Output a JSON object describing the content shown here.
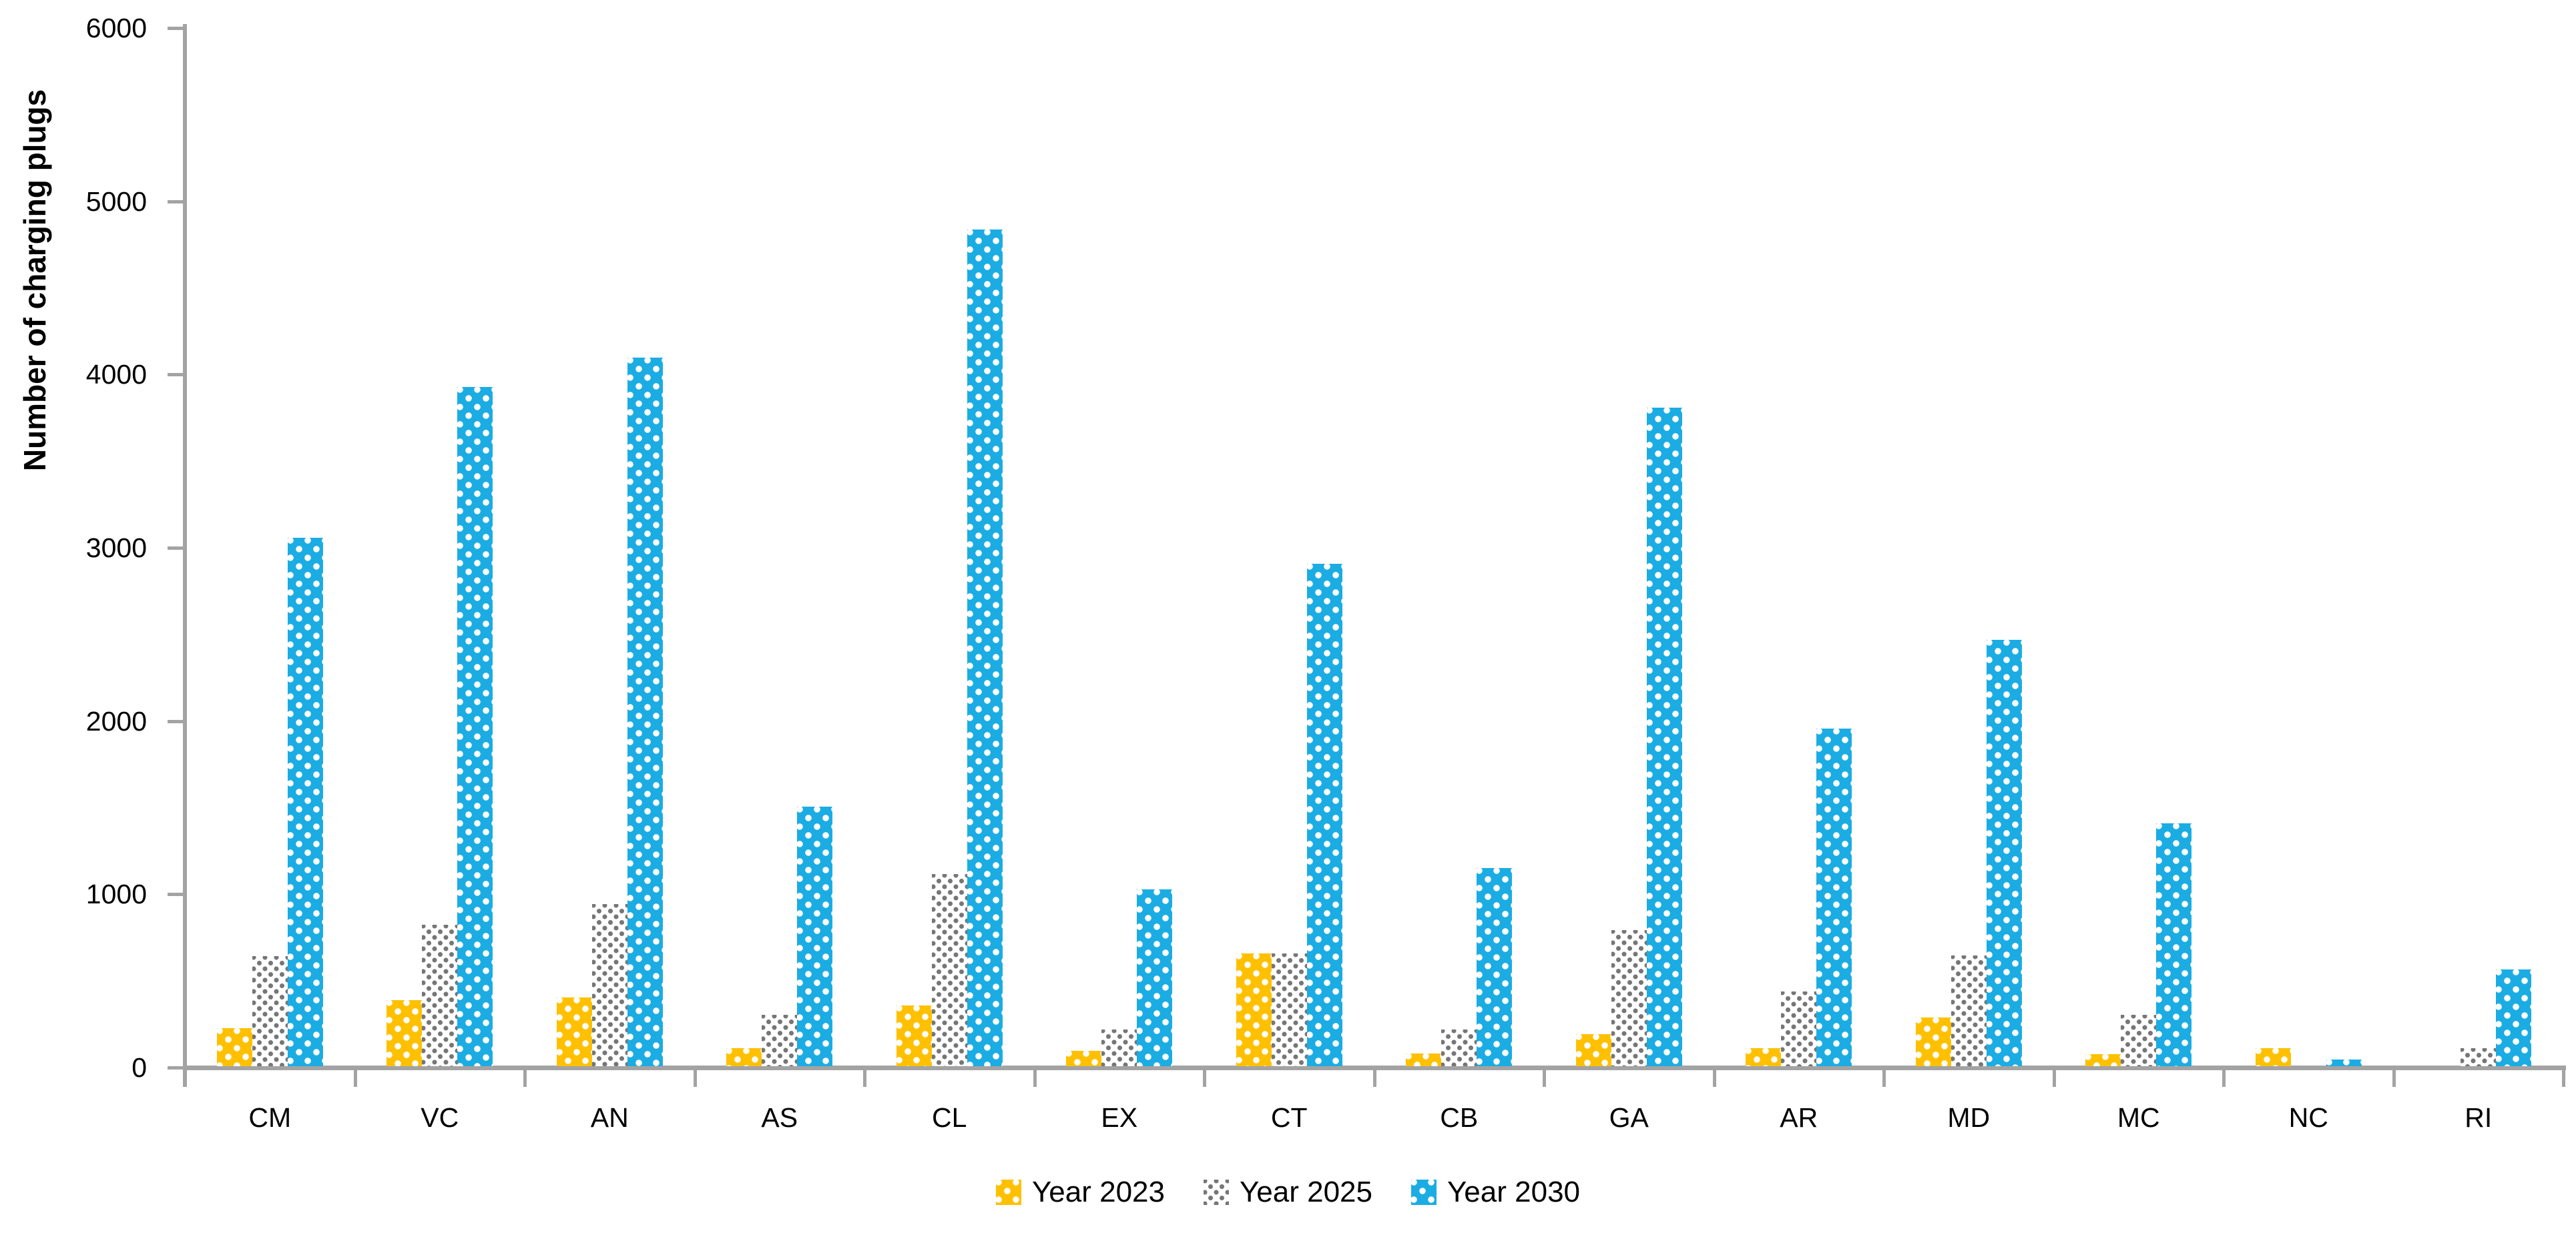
{
  "chart_data": {
    "type": "bar",
    "title": "",
    "xlabel": "",
    "ylabel": "Number of charging plugs",
    "ylim": [
      0,
      6000
    ],
    "yticks": [
      0,
      1000,
      2000,
      3000,
      4000,
      5000,
      6000
    ],
    "grid": false,
    "legend_position": "bottom",
    "categories": [
      "CM",
      "VC",
      "AN",
      "AS",
      "CL",
      "EX",
      "CT",
      "CB",
      "GA",
      "AR",
      "MD",
      "MC",
      "NC",
      "RI"
    ],
    "series": [
      {
        "name": "Year 2023",
        "color": "#FFC000",
        "pattern": "white-dots-on-gold",
        "values": [
          220,
          380,
          395,
          105,
          350,
          90,
          650,
          75,
          185,
          105,
          280,
          70,
          105,
          0
        ]
      },
      {
        "name": "Year 2025",
        "color": "#FFFFFF",
        "dot_color": "#767676",
        "pattern": "gray-dots-on-white",
        "values": [
          635,
          815,
          935,
          295,
          1110,
          210,
          650,
          210,
          785,
          430,
          640,
          295,
          0,
          105
        ]
      },
      {
        "name": "Year 2030",
        "color": "#1BACE4",
        "pattern": "white-dots-on-blue",
        "values": [
          3050,
          3920,
          4090,
          1500,
          4830,
          1020,
          2900,
          1145,
          3800,
          1950,
          2460,
          1400,
          40,
          560
        ]
      }
    ]
  },
  "axis_color": "#A3A3A3",
  "text_color": "#000000"
}
